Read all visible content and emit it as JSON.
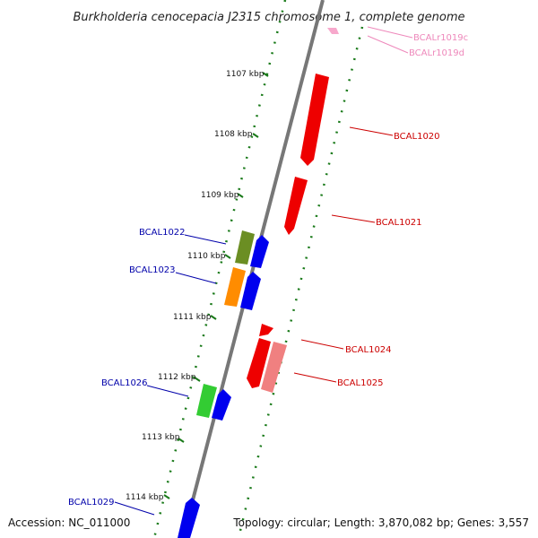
{
  "title": "Burkholderia cenocepacia J2315 chromosome 1, complete genome",
  "footer": {
    "accession": "Accession: NC_011000",
    "summary": "Topology: circular; Length: 3,870,082 bp; Genes: 3,557"
  },
  "colors": {
    "backbone": "#777777",
    "tick": "#1a7a1a",
    "forward_label": "#cc0000",
    "reverse_label": "#0000aa",
    "rna_label": "#ee88bb"
  },
  "ticks": [
    "1107 kbp",
    "1108 kbp",
    "1109 kbp",
    "1110 kbp",
    "1111 kbp",
    "1112 kbp",
    "1113 kbp",
    "1114 kbp"
  ],
  "genes": {
    "BCALr1019c": "BCALr1019c",
    "BCALr1019d": "BCALr1019d",
    "BCAL1020": "BCAL1020",
    "BCAL1021": "BCAL1021",
    "BCAL1022": "BCAL1022",
    "BCAL1023": "BCAL1023",
    "BCAL1024": "BCAL1024",
    "BCAL1025": "BCAL1025",
    "BCAL1026": "BCAL1026",
    "BCAL1029": "BCAL1029"
  }
}
